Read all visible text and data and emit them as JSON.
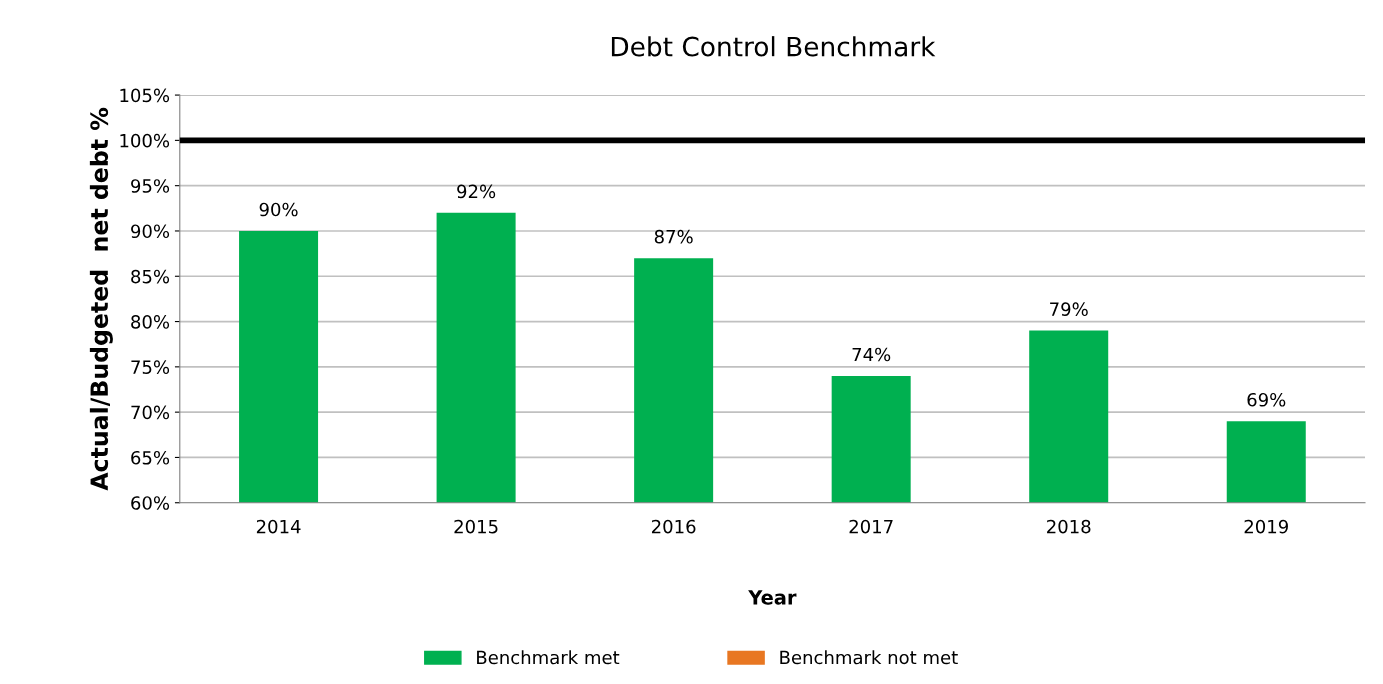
{
  "chart_data": {
    "type": "bar",
    "title": "Debt Control Benchmark",
    "xlabel": "Year",
    "ylabel": "Actual/Budgeted  net debt %",
    "categories": [
      "2014",
      "2015",
      "2016",
      "2017",
      "2018",
      "2019"
    ],
    "series": [
      {
        "name": "Benchmark met",
        "color": "#00b050",
        "values": [
          90,
          92,
          87,
          74,
          79,
          69
        ],
        "value_labels": [
          "90%",
          "92%",
          "87%",
          "74%",
          "79%",
          "69%"
        ]
      },
      {
        "name": "Benchmark not met",
        "color": "#e87722",
        "values": [
          null,
          null,
          null,
          null,
          null,
          null
        ]
      }
    ],
    "ylim": [
      60,
      105
    ],
    "yticks": [
      {
        "value": 60,
        "label": "60%"
      },
      {
        "value": 65,
        "label": "65%"
      },
      {
        "value": 70,
        "label": "70%"
      },
      {
        "value": 75,
        "label": "75%"
      },
      {
        "value": 80,
        "label": "80%"
      },
      {
        "value": 85,
        "label": "85%"
      },
      {
        "value": 90,
        "label": "90%"
      },
      {
        "value": 95,
        "label": "95%"
      },
      {
        "value": 100,
        "label": "100%"
      },
      {
        "value": 105,
        "label": "105%"
      }
    ],
    "ref_lines": [
      {
        "axis": "y",
        "value": 100,
        "color": "#000000"
      }
    ],
    "grid": "y",
    "legend": "bottom"
  }
}
